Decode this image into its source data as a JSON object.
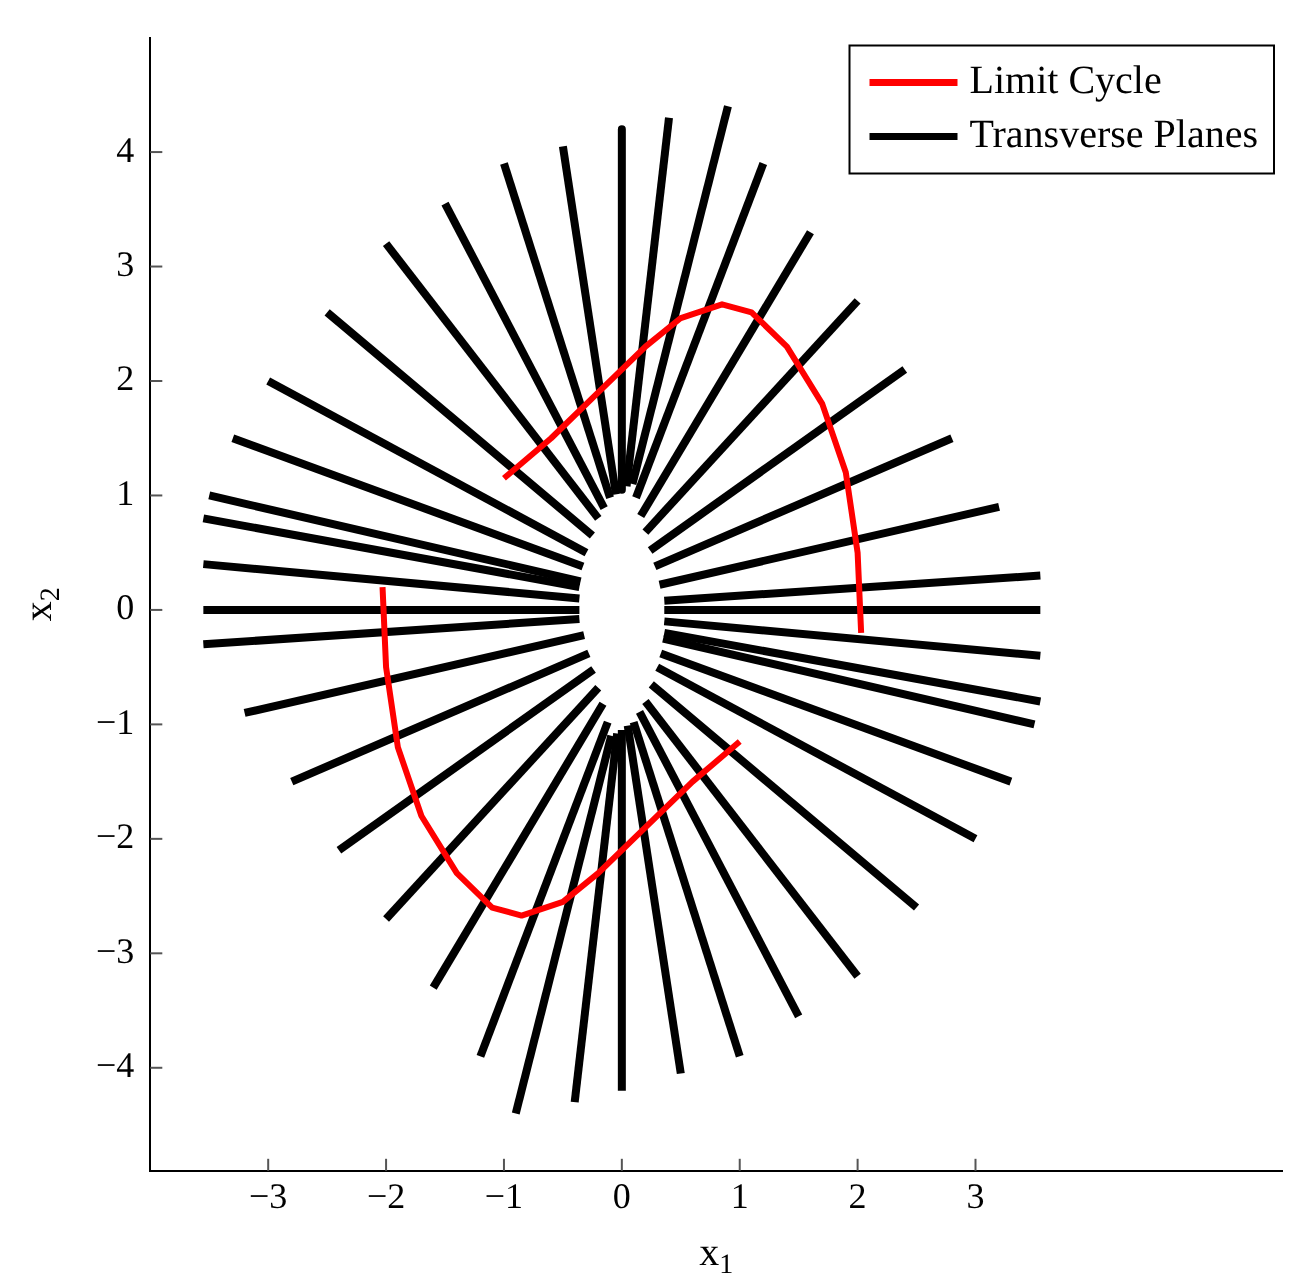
{
  "chart_data": {
    "type": "line",
    "xlabel": "x$_{1}$",
    "ylabel": "x$_{2}$",
    "xlim": [
      -4,
      5.6
    ],
    "ylim": [
      -4.9,
      5
    ],
    "xticks": [
      -3,
      -2,
      -1,
      0,
      1,
      2,
      3
    ],
    "yticks": [
      -4,
      -3,
      -2,
      -1,
      0,
      1,
      2,
      3,
      4
    ],
    "legend": "top right",
    "marker": "none",
    "line_style": "solid",
    "series": [
      {
        "name": "Limit Cycle",
        "color": "#ff0000",
        "x": [
          -2.03,
          -2.0,
          -1.9,
          -1.7,
          -1.4,
          -1.1,
          -0.85,
          -0.5,
          -0.2,
          0.2,
          0.6,
          1.0,
          null,
          2.03,
          2.0,
          1.9,
          1.7,
          1.4,
          1.1,
          0.85,
          0.5,
          0.2,
          -0.2,
          -0.6,
          -1.0
        ],
        "values": [
          0.2,
          -0.5,
          -1.2,
          -1.8,
          -2.3,
          -2.6,
          -2.67,
          -2.55,
          -2.3,
          -1.9,
          -1.5,
          -1.15,
          null,
          -0.2,
          0.5,
          1.2,
          1.8,
          2.3,
          2.6,
          2.67,
          2.55,
          2.3,
          1.9,
          1.5,
          1.15
        ]
      },
      {
        "name": "Transverse Planes",
        "color": "#000000",
        "x": [
          3.55,
          0.36
        ],
        "values": [
          -0.8,
          -0.2
        ]
      },
      {
        "color": "#000000",
        "x": [
          3.55,
          0.36
        ],
        "values": [
          -0.4,
          -0.1
        ]
      },
      {
        "color": "#000000",
        "x": [
          3.55,
          0.36
        ],
        "values": [
          0,
          0
        ]
      },
      {
        "color": "#000000",
        "x": [
          3.55,
          0.36
        ],
        "values": [
          0.3,
          0.08
        ]
      },
      {
        "color": "#000000",
        "x": [
          3.2,
          0.32
        ],
        "values": [
          0.9,
          0.22
        ]
      },
      {
        "color": "#000000",
        "x": [
          2.8,
          0.28
        ],
        "values": [
          1.5,
          0.38
        ]
      },
      {
        "color": "#000000",
        "x": [
          2.4,
          0.24
        ],
        "values": [
          2.1,
          0.52
        ]
      },
      {
        "color": "#000000",
        "x": [
          2.0,
          0.2
        ],
        "values": [
          2.7,
          0.68
        ]
      },
      {
        "color": "#000000",
        "x": [
          1.6,
          0.16
        ],
        "values": [
          3.3,
          0.82
        ]
      },
      {
        "color": "#000000",
        "x": [
          1.2,
          0.12
        ],
        "values": [
          3.9,
          0.98
        ]
      },
      {
        "color": "#000000",
        "x": [
          0.9,
          0.09
        ],
        "values": [
          4.4,
          1.1
        ]
      },
      {
        "color": "#000000",
        "x": [
          0.4,
          0.04
        ],
        "values": [
          4.3,
          1.08
        ]
      },
      {
        "color": "#000000",
        "x": [
          0,
          0
        ],
        "values": [
          4.2,
          1.05
        ]
      },
      {
        "color": "#000000",
        "x": [
          -0.5,
          -0.05
        ],
        "values": [
          4.05,
          1.01
        ]
      },
      {
        "color": "#000000",
        "x": [
          -1,
          -0.1
        ],
        "values": [
          3.9,
          0.98
        ]
      },
      {
        "color": "#000000",
        "x": [
          -1.5,
          -0.15
        ],
        "values": [
          3.55,
          0.89
        ]
      },
      {
        "color": "#000000",
        "x": [
          -2,
          -0.2
        ],
        "values": [
          3.2,
          0.8
        ]
      },
      {
        "color": "#000000",
        "x": [
          -2.5,
          -0.25
        ],
        "values": [
          2.6,
          0.65
        ]
      },
      {
        "color": "#000000",
        "x": [
          -3,
          -0.3
        ],
        "values": [
          2,
          0.5
        ]
      },
      {
        "color": "#000000",
        "x": [
          -3.3,
          -0.33
        ],
        "values": [
          1.5,
          0.38
        ]
      },
      {
        "color": "#000000",
        "x": [
          -3.5,
          -0.35
        ],
        "values": [
          1,
          0.25
        ]
      },
      {
        "color": "#000000",
        "x": [
          -3.55,
          -0.36
        ],
        "values": [
          0.8,
          0.2
        ]
      },
      {
        "color": "#000000",
        "x": [
          -3.55,
          -0.36
        ],
        "values": [
          0.4,
          0.1
        ]
      },
      {
        "color": "#000000",
        "x": [
          -3.55,
          -0.36
        ],
        "values": [
          0,
          0
        ]
      },
      {
        "color": "#000000",
        "x": [
          -3.55,
          -0.36
        ],
        "values": [
          -0.3,
          -0.08
        ]
      },
      {
        "color": "#000000",
        "x": [
          -3.2,
          -0.32
        ],
        "values": [
          -0.9,
          -0.22
        ]
      },
      {
        "color": "#000000",
        "x": [
          -2.8,
          -0.28
        ],
        "values": [
          -1.5,
          -0.38
        ]
      },
      {
        "color": "#000000",
        "x": [
          -2.4,
          -0.24
        ],
        "values": [
          -2.1,
          -0.52
        ]
      },
      {
        "color": "#000000",
        "x": [
          -2,
          -0.2
        ],
        "values": [
          -2.7,
          -0.68
        ]
      },
      {
        "color": "#000000",
        "x": [
          -1.6,
          -0.16
        ],
        "values": [
          -3.3,
          -0.82
        ]
      },
      {
        "color": "#000000",
        "x": [
          -1.2,
          -0.12
        ],
        "values": [
          -3.9,
          -0.98
        ]
      },
      {
        "color": "#000000",
        "x": [
          -0.9,
          -0.09
        ],
        "values": [
          -4.4,
          -1.1
        ]
      },
      {
        "color": "#000000",
        "x": [
          -0.4,
          -0.04
        ],
        "values": [
          -4.3,
          -1.08
        ]
      },
      {
        "color": "#000000",
        "x": [
          0,
          0
        ],
        "values": [
          -4.2,
          -1.05
        ]
      },
      {
        "color": "#000000",
        "x": [
          0.5,
          0.05
        ],
        "values": [
          -4.05,
          -1.01
        ]
      },
      {
        "color": "#000000",
        "x": [
          1,
          0.1
        ],
        "values": [
          -3.9,
          -0.98
        ]
      },
      {
        "color": "#000000",
        "x": [
          1.5,
          0.15
        ],
        "values": [
          -3.55,
          -0.89
        ]
      },
      {
        "color": "#000000",
        "x": [
          2,
          0.2
        ],
        "values": [
          -3.2,
          -0.8
        ]
      },
      {
        "color": "#000000",
        "x": [
          2.5,
          0.25
        ],
        "values": [
          -2.6,
          -0.65
        ]
      },
      {
        "color": "#000000",
        "x": [
          3,
          0.3
        ],
        "values": [
          -2,
          -0.5
        ]
      },
      {
        "color": "#000000",
        "x": [
          3.3,
          0.33
        ],
        "values": [
          -1.5,
          -0.38
        ]
      },
      {
        "color": "#000000",
        "x": [
          3.5,
          0.35
        ],
        "values": [
          -1,
          -0.25
        ]
      }
    ]
  }
}
